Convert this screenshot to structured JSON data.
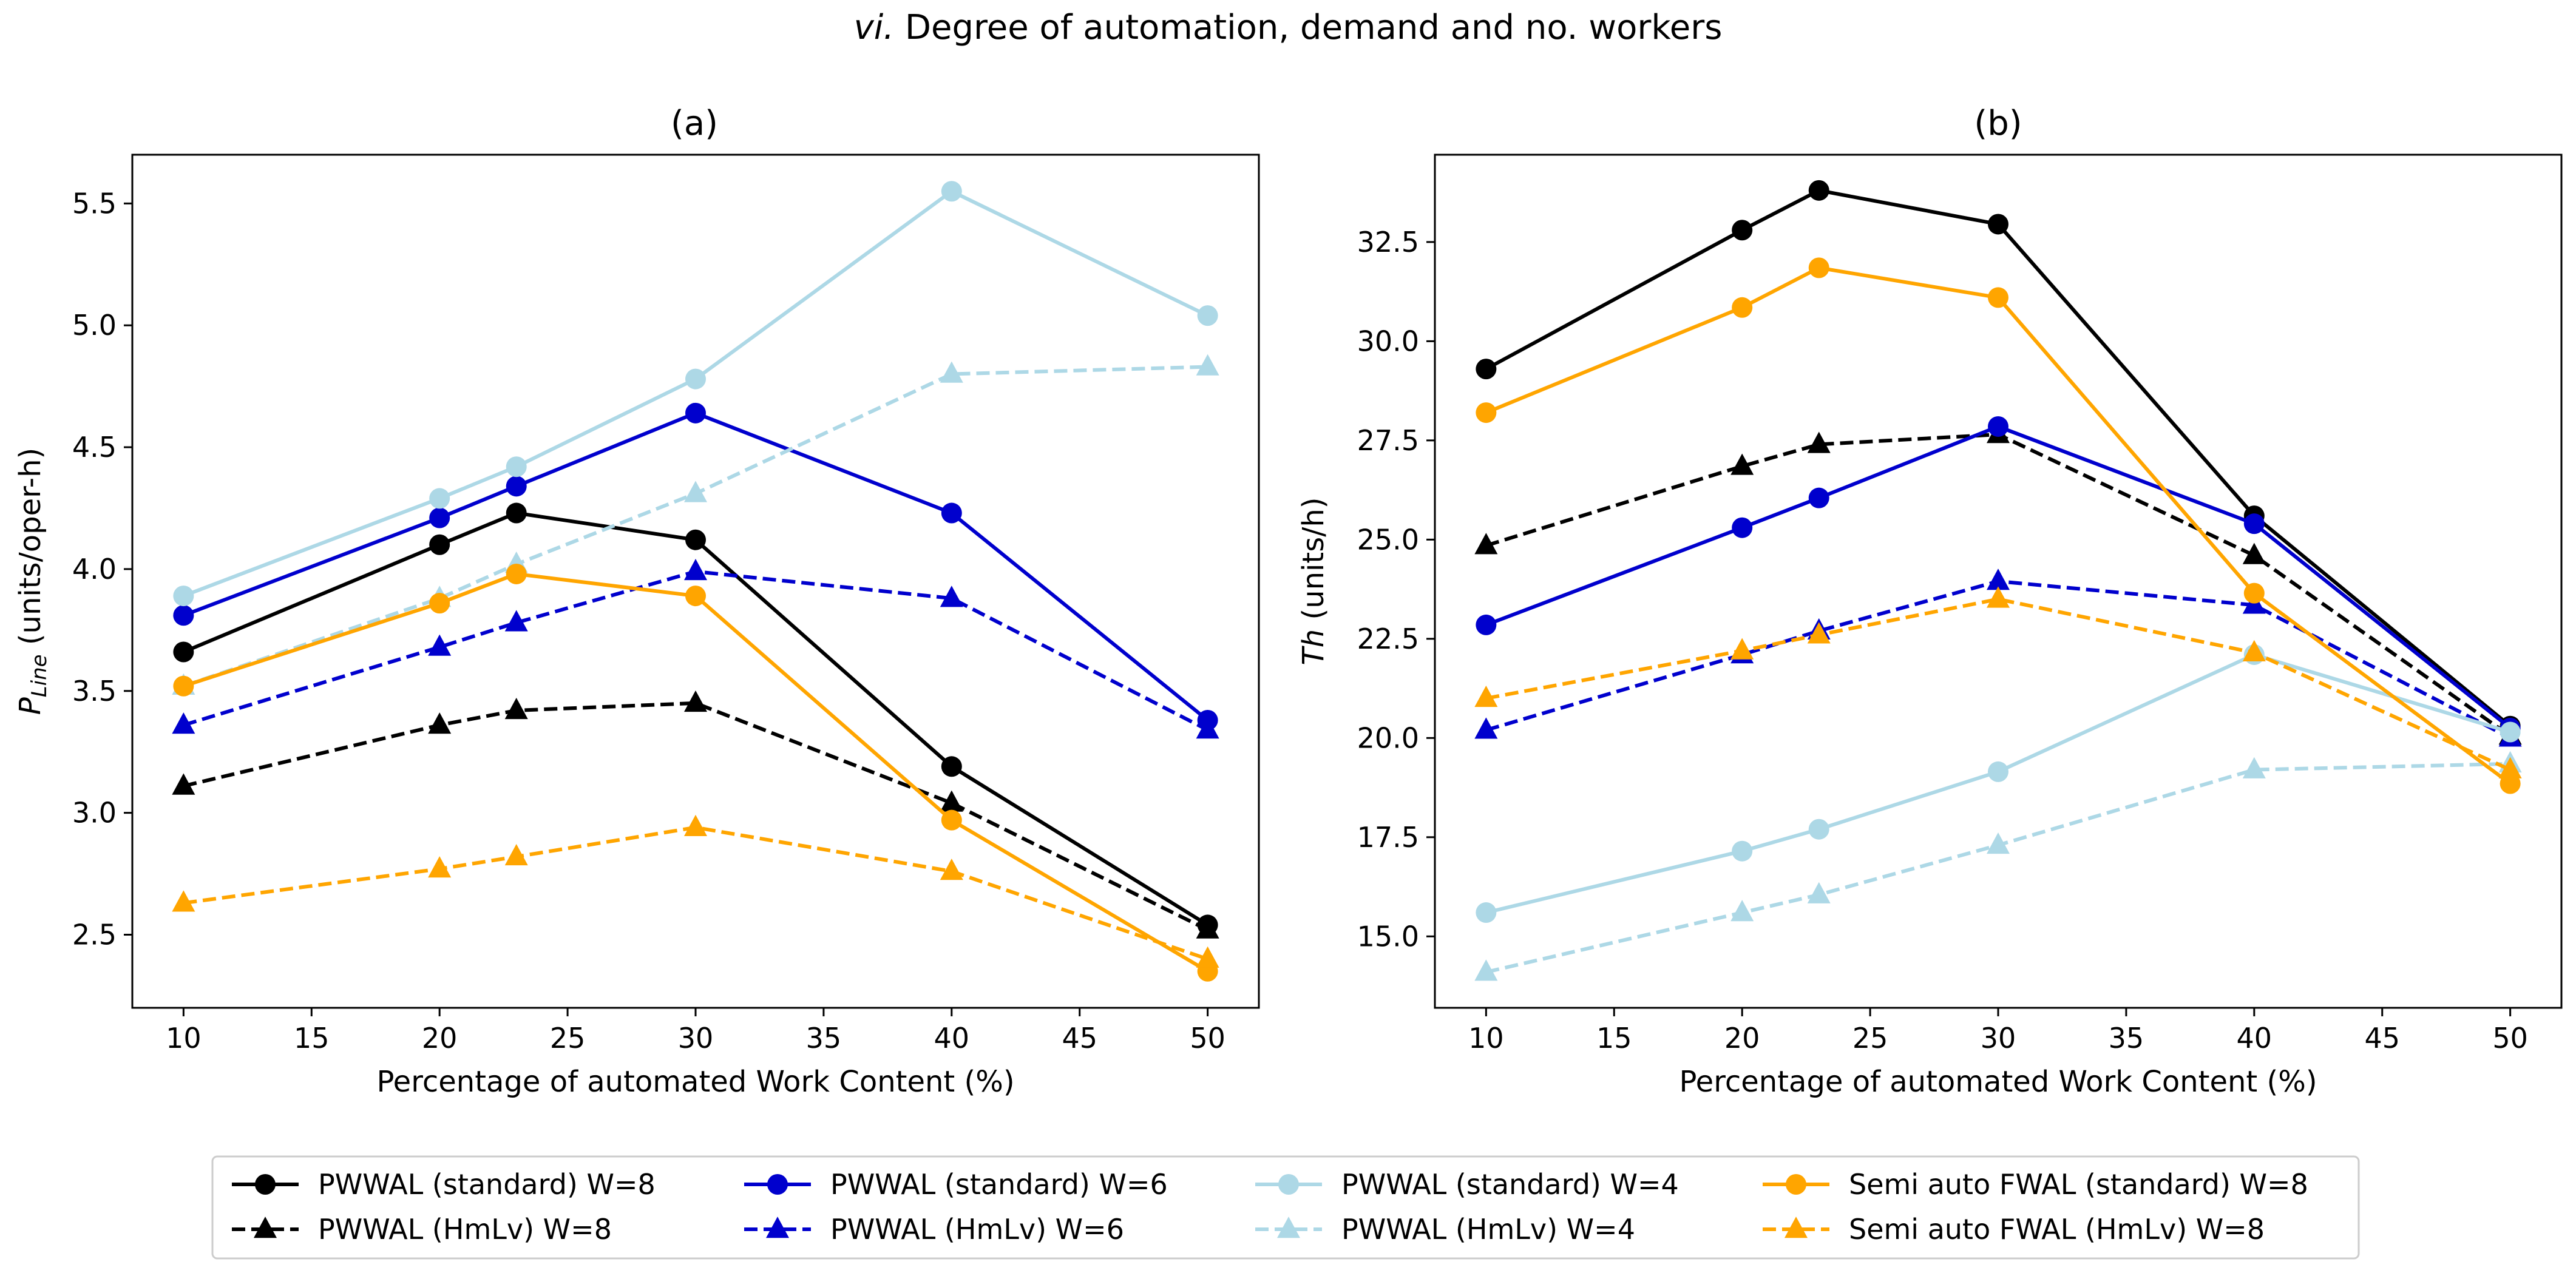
{
  "chart_data": {
    "type": "line",
    "suptitle": {
      "prefix": "vi.",
      "text": " Degree of automation, demand and no. workers"
    },
    "x": [
      10,
      20,
      23,
      30,
      40,
      50
    ],
    "series_styles": [
      {
        "name": "PWWAL (standard) W=8",
        "color": "#000000",
        "marker": "circle",
        "dash": "solid"
      },
      {
        "name": "PWWAL (HmLv) W=8",
        "color": "#000000",
        "marker": "triangle",
        "dash": "dashed"
      },
      {
        "name": "PWWAL (standard) W=6",
        "color": "#0000cd",
        "marker": "circle",
        "dash": "solid"
      },
      {
        "name": "PWWAL (HmLv) W=6",
        "color": "#0000cd",
        "marker": "triangle",
        "dash": "dashed"
      },
      {
        "name": "PWWAL (standard) W=4",
        "color": "#add8e6",
        "marker": "circle",
        "dash": "solid"
      },
      {
        "name": "PWWAL (HmLv) W=4",
        "color": "#add8e6",
        "marker": "triangle",
        "dash": "dashed"
      },
      {
        "name": "Semi auto FWAL (standard) W=8",
        "color": "#ffa500",
        "marker": "circle",
        "dash": "solid"
      },
      {
        "name": "Semi auto FWAL (HmLv) W=8",
        "color": "#ffa500",
        "marker": "triangle",
        "dash": "dashed"
      }
    ],
    "panels": [
      {
        "title": "(a)",
        "xlabel": "Percentage of automated Work Content (%)",
        "ylabel": {
          "main": "P",
          "sub": "Line",
          "units": " (units/oper-h)"
        },
        "xlim": [
          8,
          52
        ],
        "ylim": [
          2.2,
          5.7
        ],
        "xticks": [
          10,
          15,
          20,
          25,
          30,
          35,
          40,
          45,
          50
        ],
        "yticks": [
          "2.5",
          "3.0",
          "3.5",
          "4.0",
          "4.5",
          "5.0",
          "5.5"
        ],
        "series": [
          {
            "name": "PWWAL (standard) W=8",
            "values": [
              3.66,
              4.1,
              4.23,
              4.12,
              3.19,
              2.54
            ]
          },
          {
            "name": "PWWAL (HmLv) W=8",
            "values": [
              3.11,
              3.36,
              3.42,
              3.45,
              3.04,
              2.52
            ]
          },
          {
            "name": "PWWAL (standard) W=6",
            "values": [
              3.81,
              4.21,
              4.34,
              4.64,
              4.23,
              3.38
            ]
          },
          {
            "name": "PWWAL (HmLv) W=6",
            "values": [
              3.36,
              3.68,
              3.78,
              3.99,
              3.88,
              3.34
            ]
          },
          {
            "name": "PWWAL (standard) W=4",
            "values": [
              3.89,
              4.29,
              4.42,
              4.78,
              5.55,
              5.04
            ]
          },
          {
            "name": "PWWAL (HmLv) W=4",
            "values": [
              3.52,
              3.88,
              4.02,
              4.31,
              4.8,
              4.83
            ]
          },
          {
            "name": "Semi auto FWAL (standard) W=8",
            "values": [
              3.52,
              3.86,
              3.98,
              3.89,
              2.97,
              2.35
            ]
          },
          {
            "name": "Semi auto FWAL (HmLv) W=8",
            "values": [
              2.63,
              2.77,
              2.82,
              2.94,
              2.76,
              2.4
            ]
          }
        ]
      },
      {
        "title": "(b)",
        "xlabel": "Percentage of automated Work Content (%)",
        "ylabel": {
          "main": "Th",
          "sub": "",
          "units": " (units/h)"
        },
        "xlim": [
          8,
          52
        ],
        "ylim": [
          13.2,
          34.7
        ],
        "xticks": [
          10,
          15,
          20,
          25,
          30,
          35,
          40,
          45,
          50
        ],
        "yticks": [
          "15.0",
          "17.5",
          "20.0",
          "22.5",
          "25.0",
          "27.5",
          "30.0",
          "32.5"
        ],
        "series": [
          {
            "name": "PWWAL (standard) W=8",
            "values": [
              29.3,
              32.8,
              33.8,
              32.95,
              25.6,
              20.3
            ]
          },
          {
            "name": "PWWAL (HmLv) W=8",
            "values": [
              24.85,
              26.85,
              27.4,
              27.65,
              24.6,
              20.05
            ]
          },
          {
            "name": "PWWAL (standard) W=6",
            "values": [
              22.85,
              25.3,
              26.05,
              27.85,
              25.4,
              20.25
            ]
          },
          {
            "name": "PWWAL (HmLv) W=6",
            "values": [
              20.2,
              22.1,
              22.7,
              23.95,
              23.35,
              20.0
            ]
          },
          {
            "name": "PWWAL (standard) W=4",
            "values": [
              15.6,
              17.15,
              17.7,
              19.15,
              22.1,
              20.15
            ]
          },
          {
            "name": "PWWAL (HmLv) W=4",
            "values": [
              14.1,
              15.6,
              16.05,
              17.3,
              19.2,
              19.35
            ]
          },
          {
            "name": "Semi auto FWAL (standard) W=8",
            "values": [
              28.2,
              30.85,
              31.85,
              31.1,
              23.65,
              18.85
            ]
          },
          {
            "name": "Semi auto FWAL (HmLv) W=8",
            "values": [
              21.0,
              22.2,
              22.6,
              23.5,
              22.15,
              19.2
            ]
          }
        ]
      }
    ],
    "legend": {
      "placement": "bottom-center",
      "ncol": 4,
      "entries": [
        "PWWAL (standard) W=8",
        "PWWAL (HmLv) W=8",
        "PWWAL (standard) W=6",
        "PWWAL (HmLv) W=6",
        "PWWAL (standard) W=4",
        "PWWAL (HmLv) W=4",
        "Semi auto FWAL (standard) W=8",
        "Semi auto FWAL (HmLv) W=8"
      ]
    }
  }
}
